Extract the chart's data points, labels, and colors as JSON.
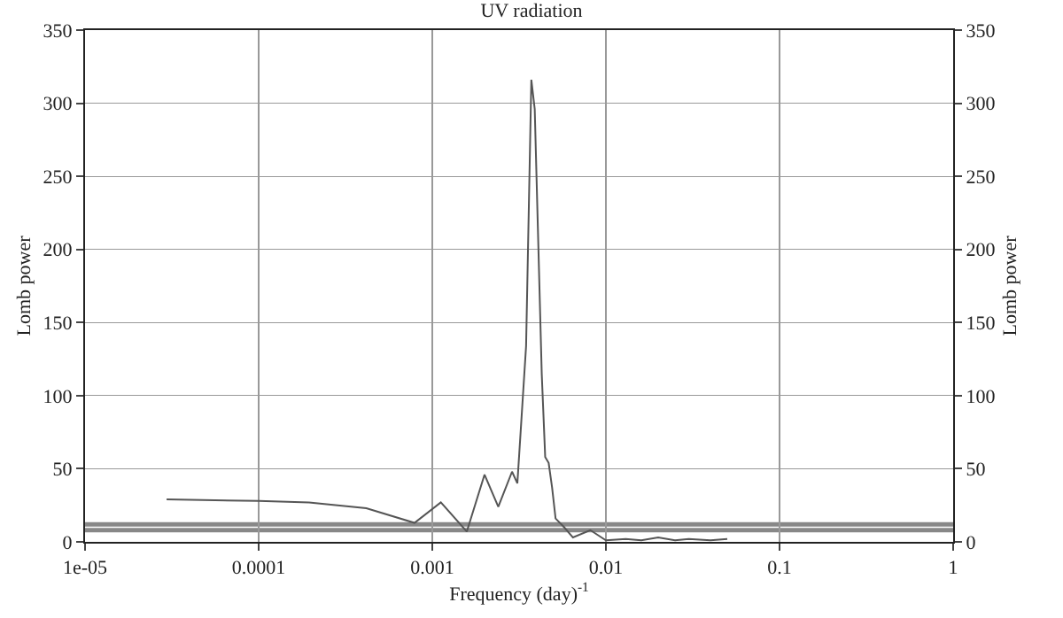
{
  "chart_data": {
    "type": "line",
    "title": "UV radiation",
    "xlabel": "Frequency (day)$^{-1}$",
    "ylabel": "Lomb power",
    "y2label": "Lomb power",
    "log": "x",
    "grid": true,
    "xlim": [
      1e-05,
      1
    ],
    "xticks": [
      {
        "value": 1e-05,
        "label": "1e-05"
      },
      0.0001,
      0.001,
      0.01,
      0.1,
      1
    ],
    "ylim": [
      0,
      350
    ],
    "yticks": [
      0,
      50,
      100,
      150,
      200,
      250,
      300,
      350
    ],
    "y2lim": [
      0,
      350
    ],
    "y2ticks": [
      0,
      50,
      100,
      150,
      200,
      250,
      300,
      350
    ],
    "ref_lines": [
      {
        "axis": "y",
        "value": 12,
        "color": "#888888"
      },
      {
        "axis": "y",
        "value": 8,
        "color": "#888888"
      }
    ],
    "series": [
      {
        "color": "#555555",
        "x": [
          2.95e-05,
          0.0001,
          0.000195,
          0.000417,
          0.00079,
          0.00112,
          0.00158,
          0.002,
          0.0024,
          0.00288,
          0.00309,
          0.00347,
          0.00372,
          0.00389,
          0.00427,
          0.00447,
          0.00468,
          0.0049,
          0.00513,
          0.00575,
          0.00646,
          0.00813,
          0.01,
          0.013,
          0.016,
          0.02,
          0.025,
          0.03,
          0.04,
          0.05
        ],
        "values": [
          29,
          28,
          27,
          23,
          13,
          27,
          7,
          46,
          24,
          48,
          40,
          134,
          316,
          296,
          115,
          58,
          54,
          37,
          16,
          10,
          3,
          8,
          1,
          2,
          1,
          3,
          1,
          2,
          1,
          2
        ]
      }
    ]
  }
}
